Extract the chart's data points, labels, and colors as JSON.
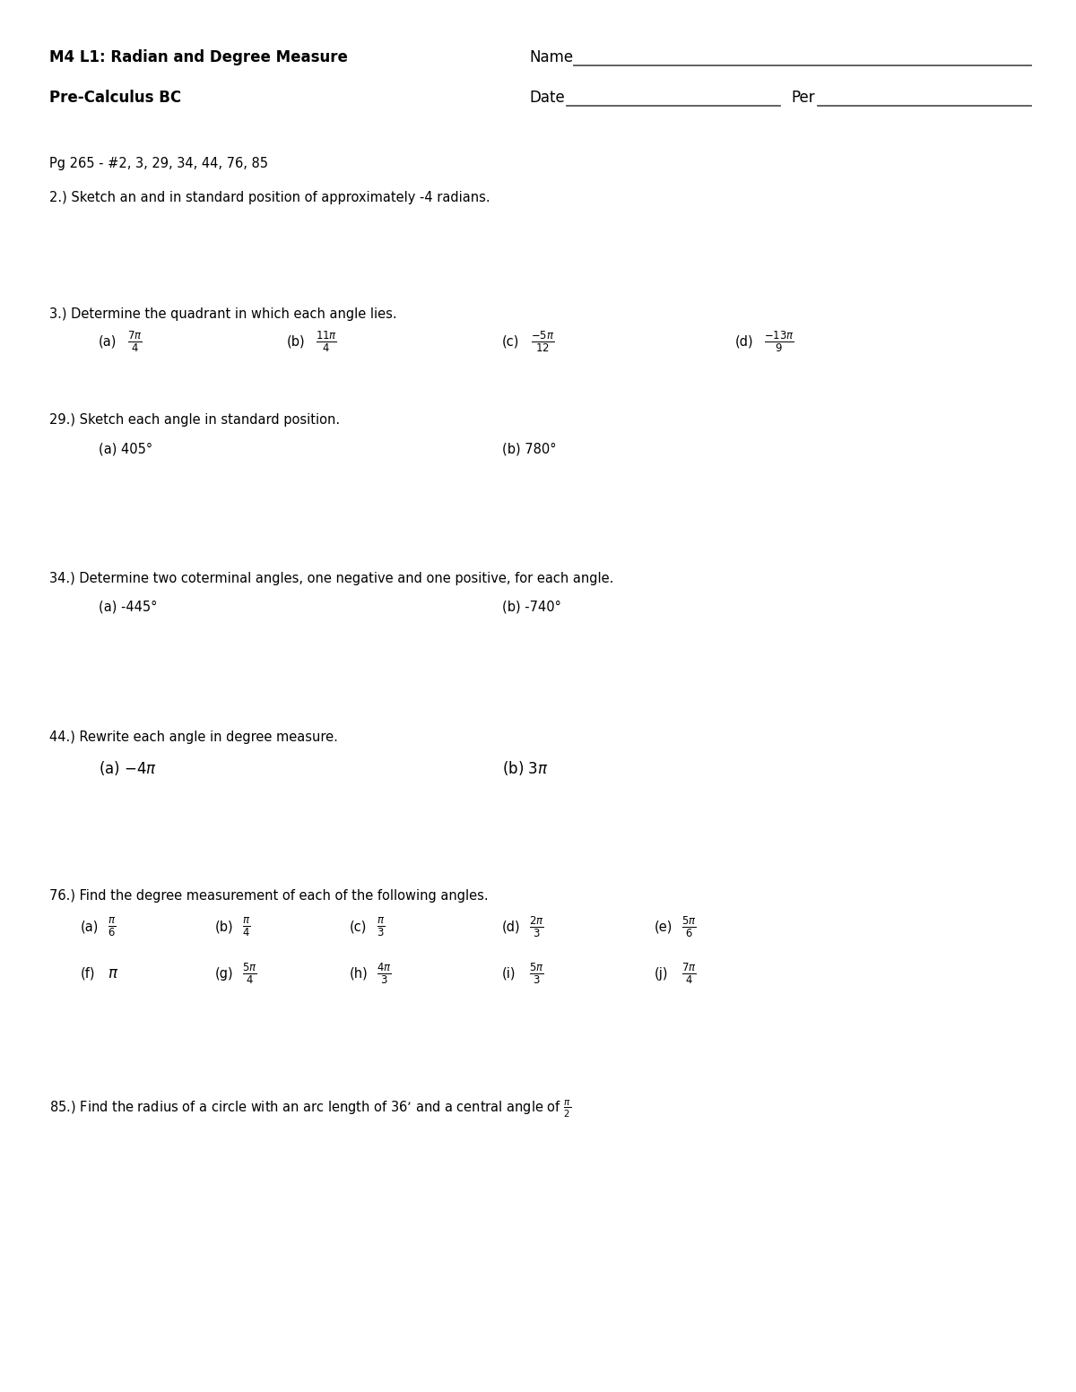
{
  "title": "M4 L1: Radian and Degree Measure",
  "subtitle": "Pre-Calculus BC",
  "name_label": "Name",
  "date_label": "Date",
  "per_label": "Per",
  "page_ref": "Pg 265 - #2, 3, 29, 34, 44, 76, 85",
  "q2_text": "2.) Sketch an and in standard position of approximately -4 radians.",
  "q3_text": "3.) Determine the quadrant in which each angle lies.",
  "q3_parts": [
    {
      "label": "(a)",
      "math": "$\\frac{7\\pi}{4}$"
    },
    {
      "label": "(b)",
      "math": "$\\frac{11\\pi}{4}$"
    },
    {
      "label": "(c)",
      "math": "$\\frac{-5\\pi}{12}$"
    },
    {
      "label": "(d)",
      "math": "$\\frac{-13\\pi}{9}$"
    }
  ],
  "q29_text": "29.) Sketch each angle in standard position.",
  "q29_parts": [
    "(a) 405°",
    "(b) 780°"
  ],
  "q34_text": "34.) Determine two coterminal angles, one negative and one positive, for each angle.",
  "q34_parts": [
    "(a) -445°",
    "(b) -740°"
  ],
  "q44_text": "44.) Rewrite each angle in degree measure.",
  "q44_parts": [
    "(a) $-4\\pi$",
    "(b) $3\\pi$"
  ],
  "q76_text": "76.) Find the degree measurement of each of the following angles.",
  "q76_row1": [
    {
      "label": "(a)",
      "math": "$\\frac{\\pi}{6}$"
    },
    {
      "label": "(b)",
      "math": "$\\frac{\\pi}{4}$"
    },
    {
      "label": "(c)",
      "math": "$\\frac{\\pi}{3}$"
    },
    {
      "label": "(d)",
      "math": "$\\frac{2\\pi}{3}$"
    },
    {
      "label": "(e)",
      "math": "$\\frac{5\\pi}{6}$"
    }
  ],
  "q76_row2": [
    {
      "label": "(f)",
      "math": "$\\pi$"
    },
    {
      "label": "(g)",
      "math": "$\\frac{5\\pi}{4}$"
    },
    {
      "label": "(h)",
      "math": "$\\frac{4\\pi}{3}$"
    },
    {
      "label": "(i)",
      "math": "$\\frac{5\\pi}{3}$"
    },
    {
      "label": "(j)",
      "math": "$\\frac{7\\pi}{4}$"
    }
  ],
  "q85_text": "85.) Find the radius of a circle with an arc length of 36’ and a central angle of $\\frac{\\pi}{2}$",
  "bg_color": "#ffffff",
  "text_color": "#000000",
  "line_color": "#555555",
  "title_fontsize": 12,
  "body_fontsize": 10.5,
  "math_fontsize": 12
}
